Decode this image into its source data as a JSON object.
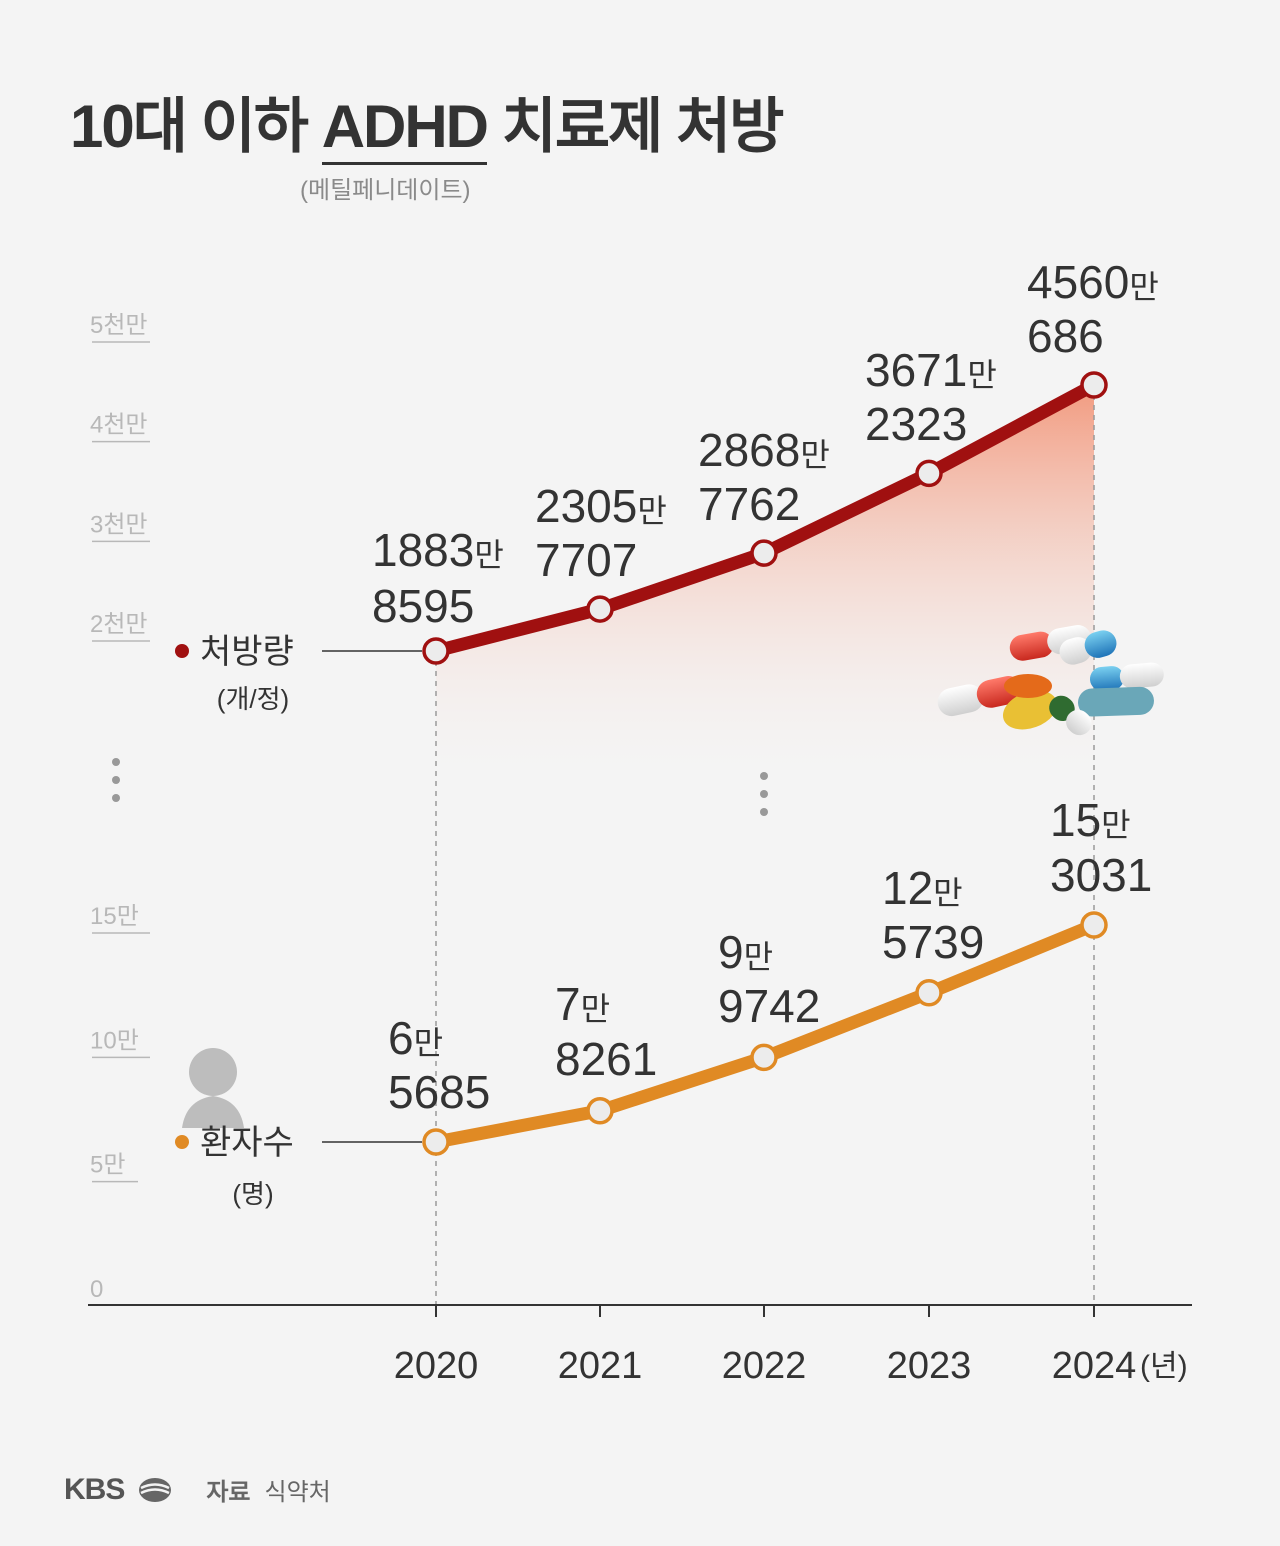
{
  "title_prefix": "10대 이하 ",
  "title_underlined": "ADHD",
  "title_suffix": " 치료제 처방",
  "subtitle": "(메틸페니데이트)",
  "footer": {
    "brand": "KBS",
    "source_label": "자료",
    "source_value": "식약처"
  },
  "colors": {
    "prescription": "#a01010",
    "patients": "#e08a24",
    "axis": "#333333",
    "tick": "#b8b8b8"
  },
  "chart_data": [
    {
      "type": "area",
      "name": "처방량",
      "unit": "(개/정)",
      "x": [
        "2020",
        "2021",
        "2022",
        "2023",
        "2024"
      ],
      "x_unit": "(년)",
      "values": [
        18838595,
        23057707,
        28687762,
        36712323,
        45600686
      ],
      "labels": [
        [
          "1883만",
          "8595"
        ],
        [
          "2305만",
          "7707"
        ],
        [
          "2868만",
          "7762"
        ],
        [
          "3671만",
          "2323"
        ],
        [
          "4560만",
          "686"
        ]
      ],
      "y_ticks": [
        20000000,
        30000000,
        40000000,
        50000000
      ],
      "y_tick_labels": [
        "2천만",
        "3천만",
        "4천만",
        "5천만"
      ],
      "ylim": [
        20000000,
        50000000
      ]
    },
    {
      "type": "line",
      "name": "환자수",
      "unit": "(명)",
      "x": [
        "2020",
        "2021",
        "2022",
        "2023",
        "2024"
      ],
      "values": [
        65685,
        78261,
        99742,
        125739,
        153031
      ],
      "labels": [
        [
          "6만",
          "5685"
        ],
        [
          "7만",
          "8261"
        ],
        [
          "9만",
          "9742"
        ],
        [
          "12만",
          "5739"
        ],
        [
          "15만",
          "3031"
        ]
      ],
      "y_ticks": [
        0,
        50000,
        100000,
        150000
      ],
      "y_tick_labels": [
        "0",
        "5만",
        "10만",
        "15만"
      ],
      "ylim": [
        0,
        150000
      ]
    }
  ]
}
